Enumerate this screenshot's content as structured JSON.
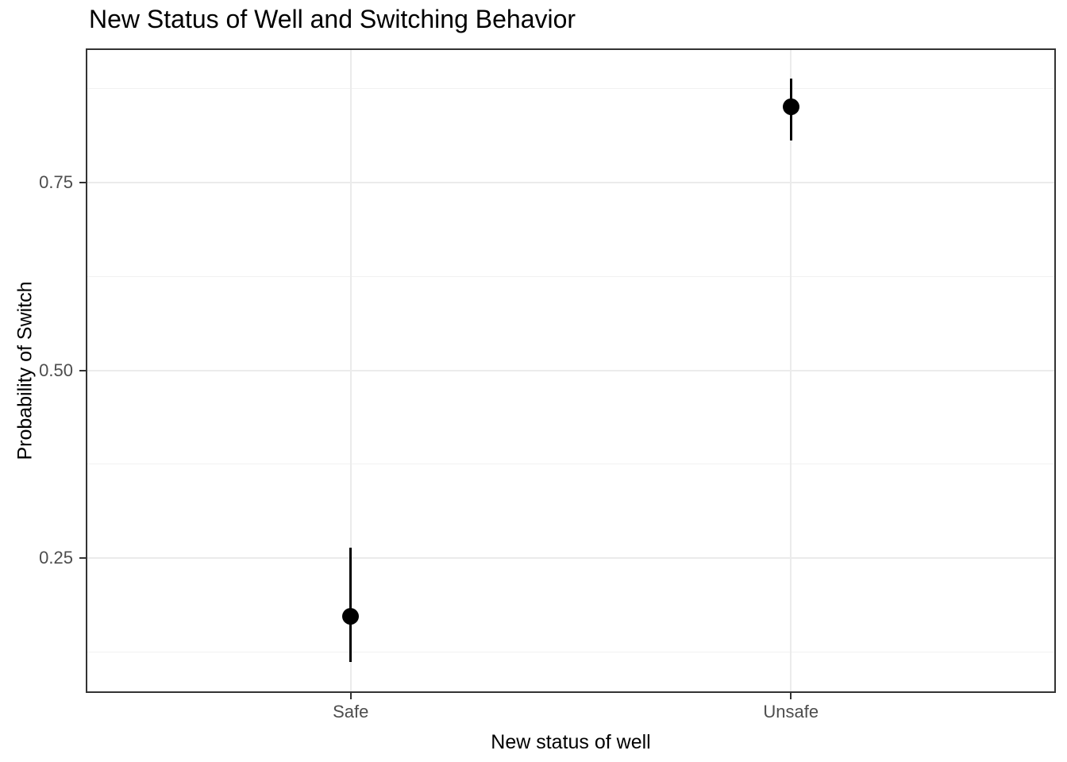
{
  "chart_data": {
    "type": "scatter",
    "subtype": "pointrange",
    "title": "New Status of Well and Switching Behavior",
    "xlabel": "New status of well",
    "ylabel": "Probability of Switch",
    "categories": [
      "Safe",
      "Unsafe"
    ],
    "series": [
      {
        "name": "probability_of_switch",
        "estimates": [
          0.173,
          0.851
        ],
        "ci_lower": [
          0.112,
          0.806
        ],
        "ci_upper": [
          0.264,
          0.888
        ]
      }
    ],
    "y_ticks": [
      0.25,
      0.5,
      0.75
    ],
    "y_tick_labels": [
      "0.25",
      "0.50",
      "0.75"
    ],
    "y_minor_gridlines": [
      0.125,
      0.375,
      0.625,
      0.875
    ],
    "ylim": [
      0.072,
      0.927
    ],
    "grid": true,
    "legend": false
  },
  "colors": {
    "point": "#000000",
    "errorbar": "#000000",
    "grid_major": "#ebebeb",
    "grid_minor": "#f1f1f1",
    "panel_border": "#333333",
    "tick_mark": "#333333",
    "tick_label": "#4d4d4d",
    "title_text": "#000000",
    "background": "#ffffff"
  }
}
